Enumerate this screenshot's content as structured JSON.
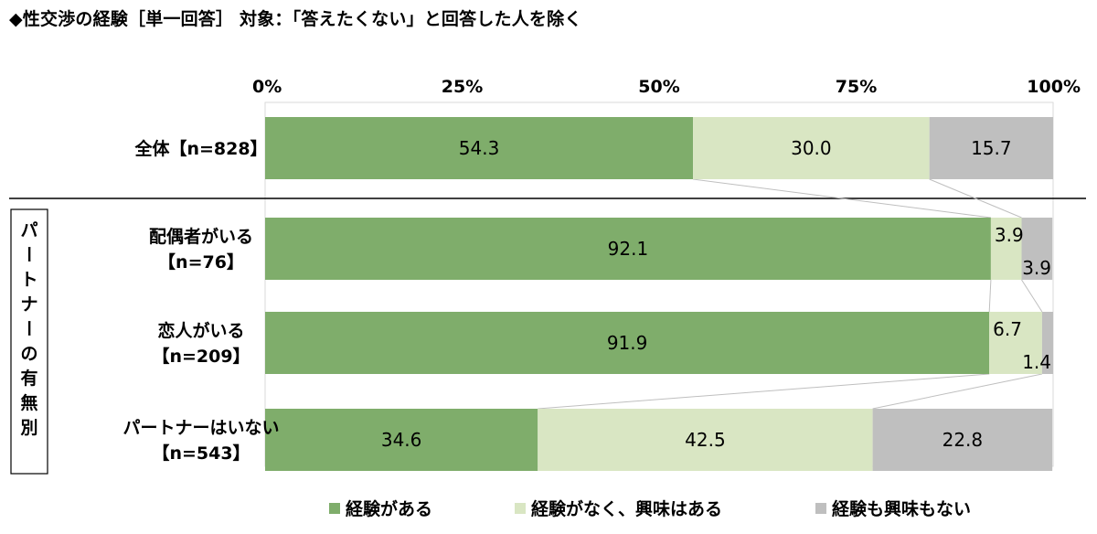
{
  "title": "◆性交渉の経験［単一回答］ 対象：「答えたくない」と回答した人を除く",
  "chart_data": {
    "type": "bar",
    "orientation": "horizontal",
    "stacked": "percent",
    "xlim": [
      0,
      100
    ],
    "x_ticks": [
      "0%",
      "25%",
      "50%",
      "75%",
      "100%"
    ],
    "categories": [
      [
        "全体【n=828】"
      ],
      [
        "配偶者がいる",
        "【n=76】"
      ],
      [
        "恋人がいる",
        "【n=209】"
      ],
      [
        "パートナーはいない",
        "【n=543】"
      ]
    ],
    "group_label": "パートナーの有無別",
    "series": [
      {
        "name": "経験がある",
        "color": "#7fad6b",
        "values": [
          54.3,
          92.1,
          91.9,
          34.6
        ]
      },
      {
        "name": "経験がなく、興味はある",
        "color": "#d9e6c3",
        "values": [
          30.0,
          3.9,
          6.7,
          42.5
        ]
      },
      {
        "name": "経験も興味もない",
        "color": "#bfbfbf",
        "values": [
          15.7,
          3.9,
          1.4,
          22.8
        ]
      }
    ],
    "data_labels": [
      [
        "54.3",
        "30.0",
        "15.7"
      ],
      [
        "92.1",
        "3.9",
        "3.9"
      ],
      [
        "91.9",
        "6.7",
        "1.4"
      ],
      [
        "34.6",
        "42.5",
        "22.8"
      ]
    ],
    "legend_position": "bottom",
    "grid": false
  }
}
